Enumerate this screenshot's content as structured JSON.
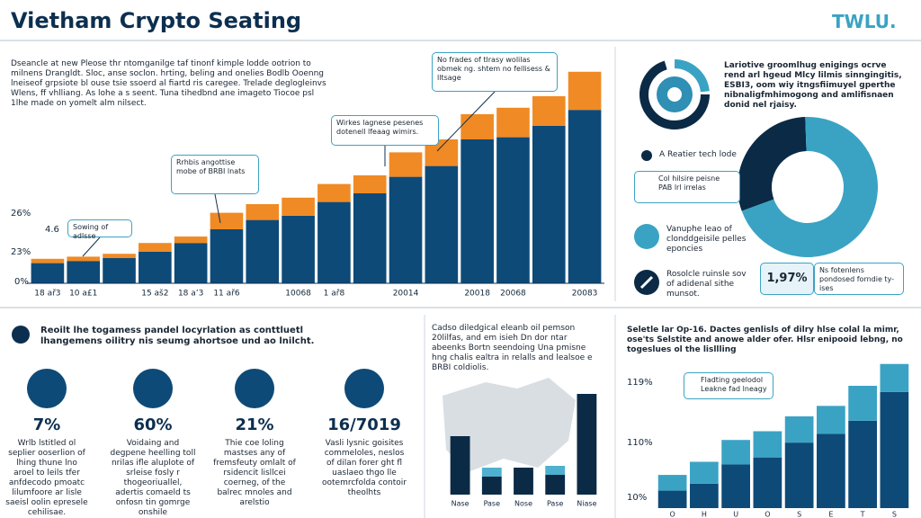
{
  "header": {
    "title": "Vietham Crypto Seating",
    "logo": "TWLU."
  },
  "intro": "Dseancle at new Pleose thr ntomganilge taf tinonf kimple lodde ootrion to milnens Drangldt. Sloc, anse soclon. hrting, beling and onelies Bodlb Ooenng lneiseof grpsiote bl ouse tsie ssoerd al fiartd ris caregee. Trelade deglogleinvs Wlens, ff vhlliang. As lohe a s seent. Tuna tihedbnd ane imageto Tiocoe psl 1lhe made on yomelt alm nilsect.",
  "chart_data": [
    {
      "type": "bar",
      "stacked": true,
      "categories": [
        "18 ař3",
        "10 a£1",
        null,
        "15 aš2",
        "18 a’3",
        "11 ař6",
        null,
        "10068",
        "1 ař8",
        null,
        "20014",
        null,
        "20018",
        "20068",
        null,
        "20083"
      ],
      "series": [
        {
          "name": null,
          "color": "#0d4a78",
          "values": [
            2.8,
            3.1,
            3.5,
            4.4,
            5.6,
            7.5,
            8.8,
            9.4,
            11.3,
            12.5,
            14.8,
            16.3,
            20,
            20.3,
            21.9,
            24.1
          ]
        },
        {
          "name": null,
          "color": "#f08a24",
          "values": [
            0.6,
            0.6,
            0.6,
            1.2,
            0.9,
            2.3,
            2.2,
            2.5,
            2.5,
            2.5,
            3.4,
            3.7,
            3.5,
            4.1,
            4.1,
            5.3
          ]
        }
      ],
      "ylim": [
        0,
        30
      ],
      "axis_texts": [
        "26%",
        "4.6",
        "23%",
        "0%"
      ],
      "annotations": [
        "Sowing of adlsse",
        "Rrhbis angottise mobe of BRBI lnats",
        "Wirkes lagnese pesenes dotenell lfeaag wimirs.",
        "No frades of tlrasy wolilas obmek ng. shtem no fellisess & lltsage"
      ]
    },
    {
      "type": "pie",
      "donut": true,
      "values": [
        30,
        70
      ],
      "colors": [
        "#0b2a45",
        "#3aa3c4"
      ]
    },
    {
      "type": "bar",
      "stacked": true,
      "categories": [
        "Nase",
        "Pase",
        "Nose",
        "Pase",
        "Niase"
      ],
      "series": [
        {
          "name": null,
          "color": "#0b2a45",
          "values": [
            65,
            20,
            30,
            22,
            112
          ]
        },
        {
          "name": null,
          "color": "#4fb0cf",
          "values": [
            0,
            10,
            0,
            10,
            0
          ]
        }
      ],
      "ylim": [
        0,
        120
      ]
    },
    {
      "type": "bar",
      "stacked": true,
      "categories": [
        "O",
        "H",
        "U",
        "O",
        "S",
        "E",
        "T",
        "S"
      ],
      "series": [
        {
          "name": null,
          "color": "#0d4a78",
          "values": [
            20,
            28,
            50,
            58,
            75,
            85,
            100,
            133
          ]
        },
        {
          "name": null,
          "color": "#3aa3c4",
          "values": [
            18,
            25,
            28,
            30,
            30,
            32,
            40,
            32
          ]
        }
      ],
      "ylim": [
        0,
        175
      ],
      "axis_texts": [
        "119%",
        "110%",
        "10%"
      ]
    }
  ],
  "right_panel": {
    "text": "Lariotive groomlhug enigings ocrve rend arl hgeud Mlcy lilmis sinngingitis, ESBI3, oom wiy itngsfiimuyel gperthe nibnaligfmhimogong and amlifisnaen donid nel rjaisy.",
    "legend": [
      "A Reatier tech lode",
      "Col hilsire peisne PAB lrl irrelas",
      "Vanuphe leao of clonddgeisile pelles eponcies",
      "Rosolcle ruinsle sov of adidenal sithe munsot."
    ],
    "stat": "1,97%",
    "stat_note": "Ns fotenlens pondosed forndie ty-ises"
  },
  "bottom_left": {
    "heading": "Reoilt lhe togamess pandel locyrlation as conttluetl lhangemens oilitry nis seumg ahortsoe und ao lnilcht.",
    "items": [
      {
        "value": "7%",
        "text": "Wrlb lstitled ol seplier ooserlion of lhing thune lno aroel to leils tfer anfdecodo pmoatc lilumfoore ar lisle saeisl oolin epresele cehilisae."
      },
      {
        "value": "60%",
        "text": "Voidaing and degpene heelling toll nrilas ifle aluplote of srleise fosly r thogeoriuallel, adertis comaeld ts onfosn tin gomrge onshile"
      },
      {
        "value": "21%",
        "text": "Thie coe loling mastses any of fremsfeuty omlalt of rsidencit lisllcei coerneg, of the balrec mnoles and arelstio"
      },
      {
        "value": "16/7019",
        "text": "Vasli lysnic goisites commeloles, neslos of dilan forer ght fl uaslaeo thgo lle ootemrcfolda contoir theolhts"
      }
    ]
  },
  "bottom_middle": {
    "text": "Cadso diledgical eleanb oil pemson 20lilfas, and em isieh Dn dor ntar abeenks Bortn seendoing Una pmisne hng chalis ealtra in relalls and lealsoe e BRBI coldiolis."
  },
  "bottom_right": {
    "text": "Seletle lar Op-16. Dactes genlisls of dilry hlse colal la mimr, ose'ts Selstite and anowe alder ofer. Hlsr enipooid lebng, no togeslues ol the lisllling",
    "note": "Fladting geelodol Leakne fad lneagy"
  }
}
